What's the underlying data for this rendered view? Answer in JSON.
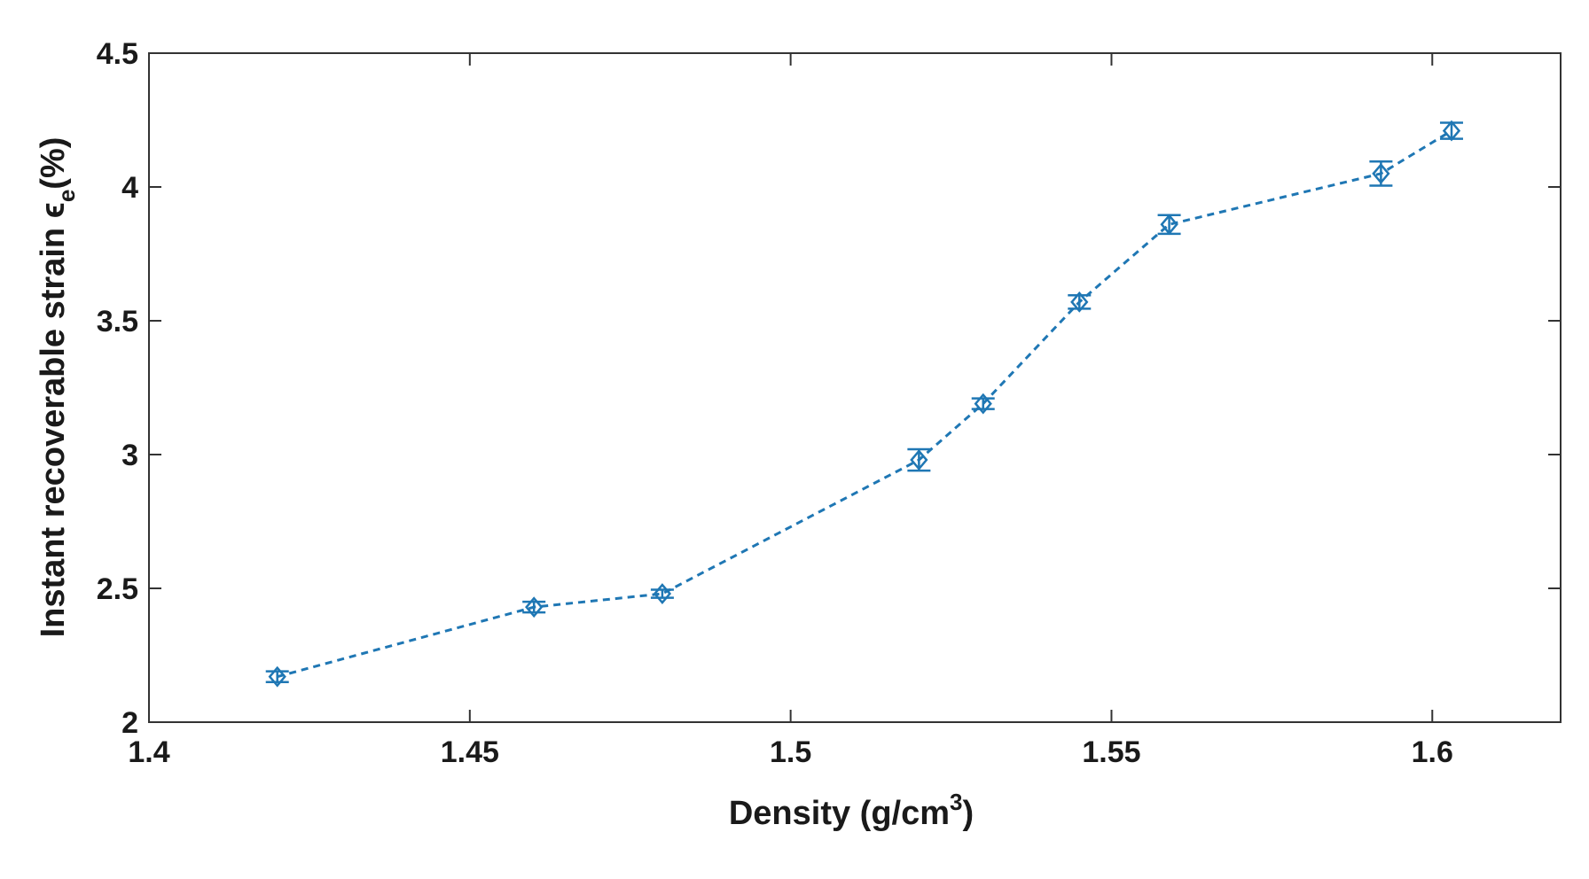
{
  "chart_data": {
    "type": "line",
    "xlabel": {
      "main": "Density (g/cm",
      "superscript": "3",
      "suffix": ")"
    },
    "ylabel": {
      "main": "Instant recoverable strain  ",
      "symbol": "ϵ",
      "subscript": "e",
      "suffix": "(%)"
    },
    "xlim": [
      1.4,
      1.62
    ],
    "ylim": [
      2,
      4.5
    ],
    "x_ticks": [
      1.4,
      1.45,
      1.5,
      1.55,
      1.6
    ],
    "x_tick_labels": [
      "1.4",
      "1.45",
      "1.5",
      "1.55",
      "1.6"
    ],
    "y_ticks": [
      2,
      2.5,
      3,
      3.5,
      4,
      4.5
    ],
    "y_tick_labels": [
      "2",
      "2.5",
      "3",
      "3.5",
      "4",
      "4.5"
    ],
    "grid": false,
    "line_style": "dashed",
    "marker": "diamond",
    "series": [
      {
        "x": [
          1.42,
          1.46,
          1.48,
          1.52,
          1.53,
          1.545,
          1.559,
          1.592,
          1.603
        ],
        "y": [
          2.17,
          2.43,
          2.48,
          2.98,
          3.19,
          3.57,
          3.86,
          4.05,
          4.21
        ],
        "error": [
          0.02,
          0.02,
          0.015,
          0.04,
          0.02,
          0.025,
          0.035,
          0.045,
          0.03
        ],
        "color": "#1f77b4"
      }
    ]
  }
}
